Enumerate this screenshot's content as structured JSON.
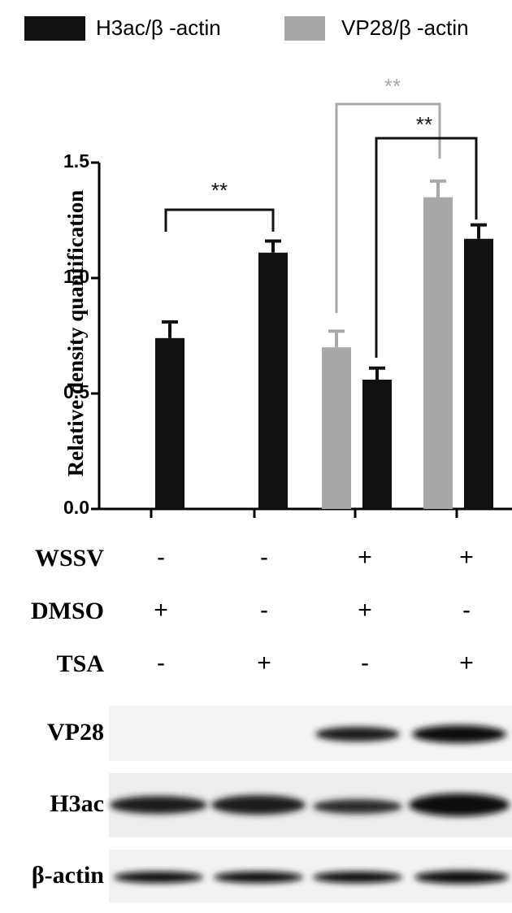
{
  "chart_data": {
    "type": "bar",
    "ylabel": "Relative density quantification",
    "categories": [
      null,
      null,
      null,
      null
    ],
    "series": [
      {
        "name": "H3ac/β -actin",
        "color": "#111111",
        "values": [
          0.74,
          1.11,
          0.56,
          1.17
        ],
        "errors": [
          0.07,
          0.05,
          0.05,
          0.06
        ]
      },
      {
        "name": "VP28/β -actin",
        "color": "#a8a8a8",
        "values": [
          null,
          null,
          0.7,
          1.35
        ],
        "errors": [
          null,
          null,
          0.07,
          0.07
        ]
      }
    ],
    "ylim": [
      0,
      1.5
    ],
    "yticks": [
      {
        "value": 0,
        "label": "0.0"
      },
      {
        "value": 0.5,
        "label": "0.5"
      },
      {
        "value": 1,
        "label": "1.0"
      },
      {
        "value": 1.5,
        "label": "1.5"
      }
    ],
    "grid": false,
    "legend": "top",
    "annotations": [
      {
        "text": "**",
        "color": "#111111"
      },
      {
        "text": "**",
        "color": "#a8a8a8"
      },
      {
        "text": "**",
        "color": "#111111"
      }
    ]
  },
  "conditions": [
    {
      "label": "WSSV",
      "values": [
        "-",
        "-",
        "+",
        "+"
      ]
    },
    {
      "label": "DMSO",
      "values": [
        "+",
        "-",
        "+",
        "-"
      ]
    },
    {
      "label": "TSA",
      "values": [
        "-",
        "+",
        "-",
        "+"
      ]
    }
  ],
  "blots": [
    "VP28",
    "H3ac",
    "β-actin"
  ]
}
